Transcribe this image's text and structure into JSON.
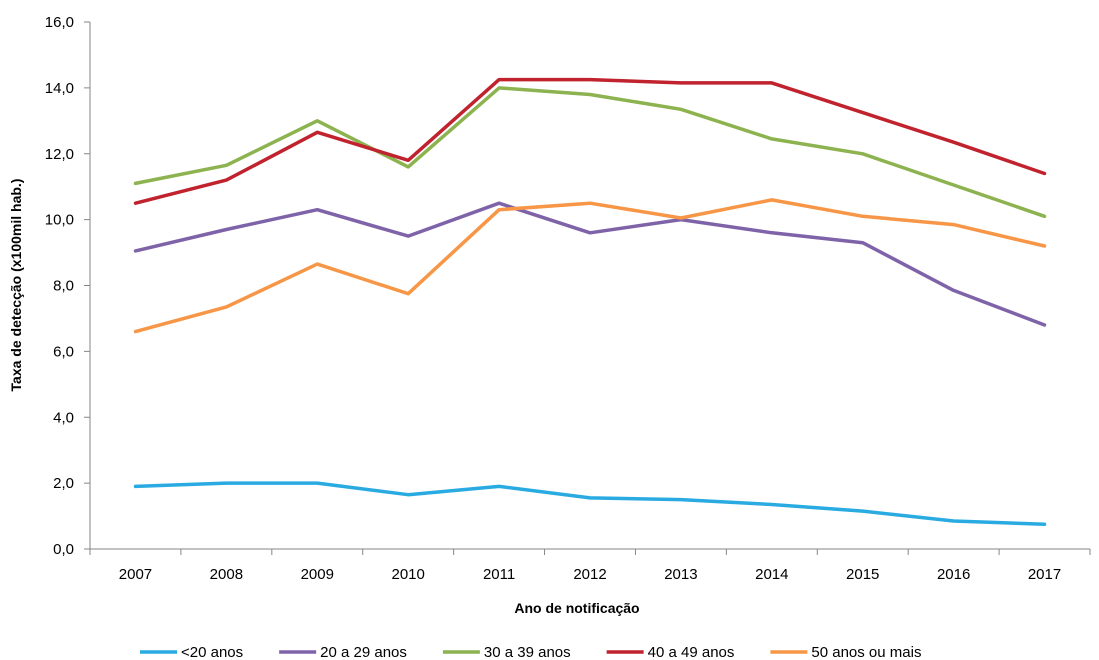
{
  "chart_data": {
    "type": "line",
    "title": "",
    "xlabel": "Ano de notificação",
    "ylabel": "Taxa de detecção (x100mil hab.)",
    "x": [
      "2007",
      "2008",
      "2009",
      "2010",
      "2011",
      "2012",
      "2013",
      "2014",
      "2015",
      "2016",
      "2017"
    ],
    "ylim": [
      0,
      16
    ],
    "yticks": [
      "0,0",
      "2,0",
      "4,0",
      "6,0",
      "8,0",
      "10,0",
      "12,0",
      "14,0",
      "16,0"
    ],
    "grid": false,
    "legend_position": "bottom",
    "series": [
      {
        "name": "<20 anos",
        "color": "#29ABE2",
        "values": [
          1.9,
          2.0,
          2.0,
          1.65,
          1.9,
          1.55,
          1.5,
          1.35,
          1.15,
          0.85,
          0.75
        ]
      },
      {
        "name": "20 a 29 anos",
        "color": "#7E63A8",
        "values": [
          9.05,
          9.7,
          10.3,
          9.5,
          10.5,
          9.6,
          10.0,
          9.6,
          9.3,
          7.85,
          6.8
        ]
      },
      {
        "name": "30 a 39 anos",
        "color": "#8CB34F",
        "values": [
          11.1,
          11.65,
          13.0,
          11.6,
          14.0,
          13.8,
          13.35,
          12.45,
          12.0,
          11.05,
          10.1
        ]
      },
      {
        "name": "40 a 49 anos",
        "color": "#C0232E",
        "values": [
          10.5,
          11.2,
          12.65,
          11.8,
          14.25,
          14.25,
          14.15,
          14.15,
          13.25,
          12.35,
          11.4
        ]
      },
      {
        "name": "50 anos ou mais",
        "color": "#F79646",
        "values": [
          6.6,
          7.35,
          8.65,
          7.75,
          10.3,
          10.5,
          10.05,
          10.6,
          10.1,
          9.85,
          9.2
        ]
      }
    ]
  }
}
